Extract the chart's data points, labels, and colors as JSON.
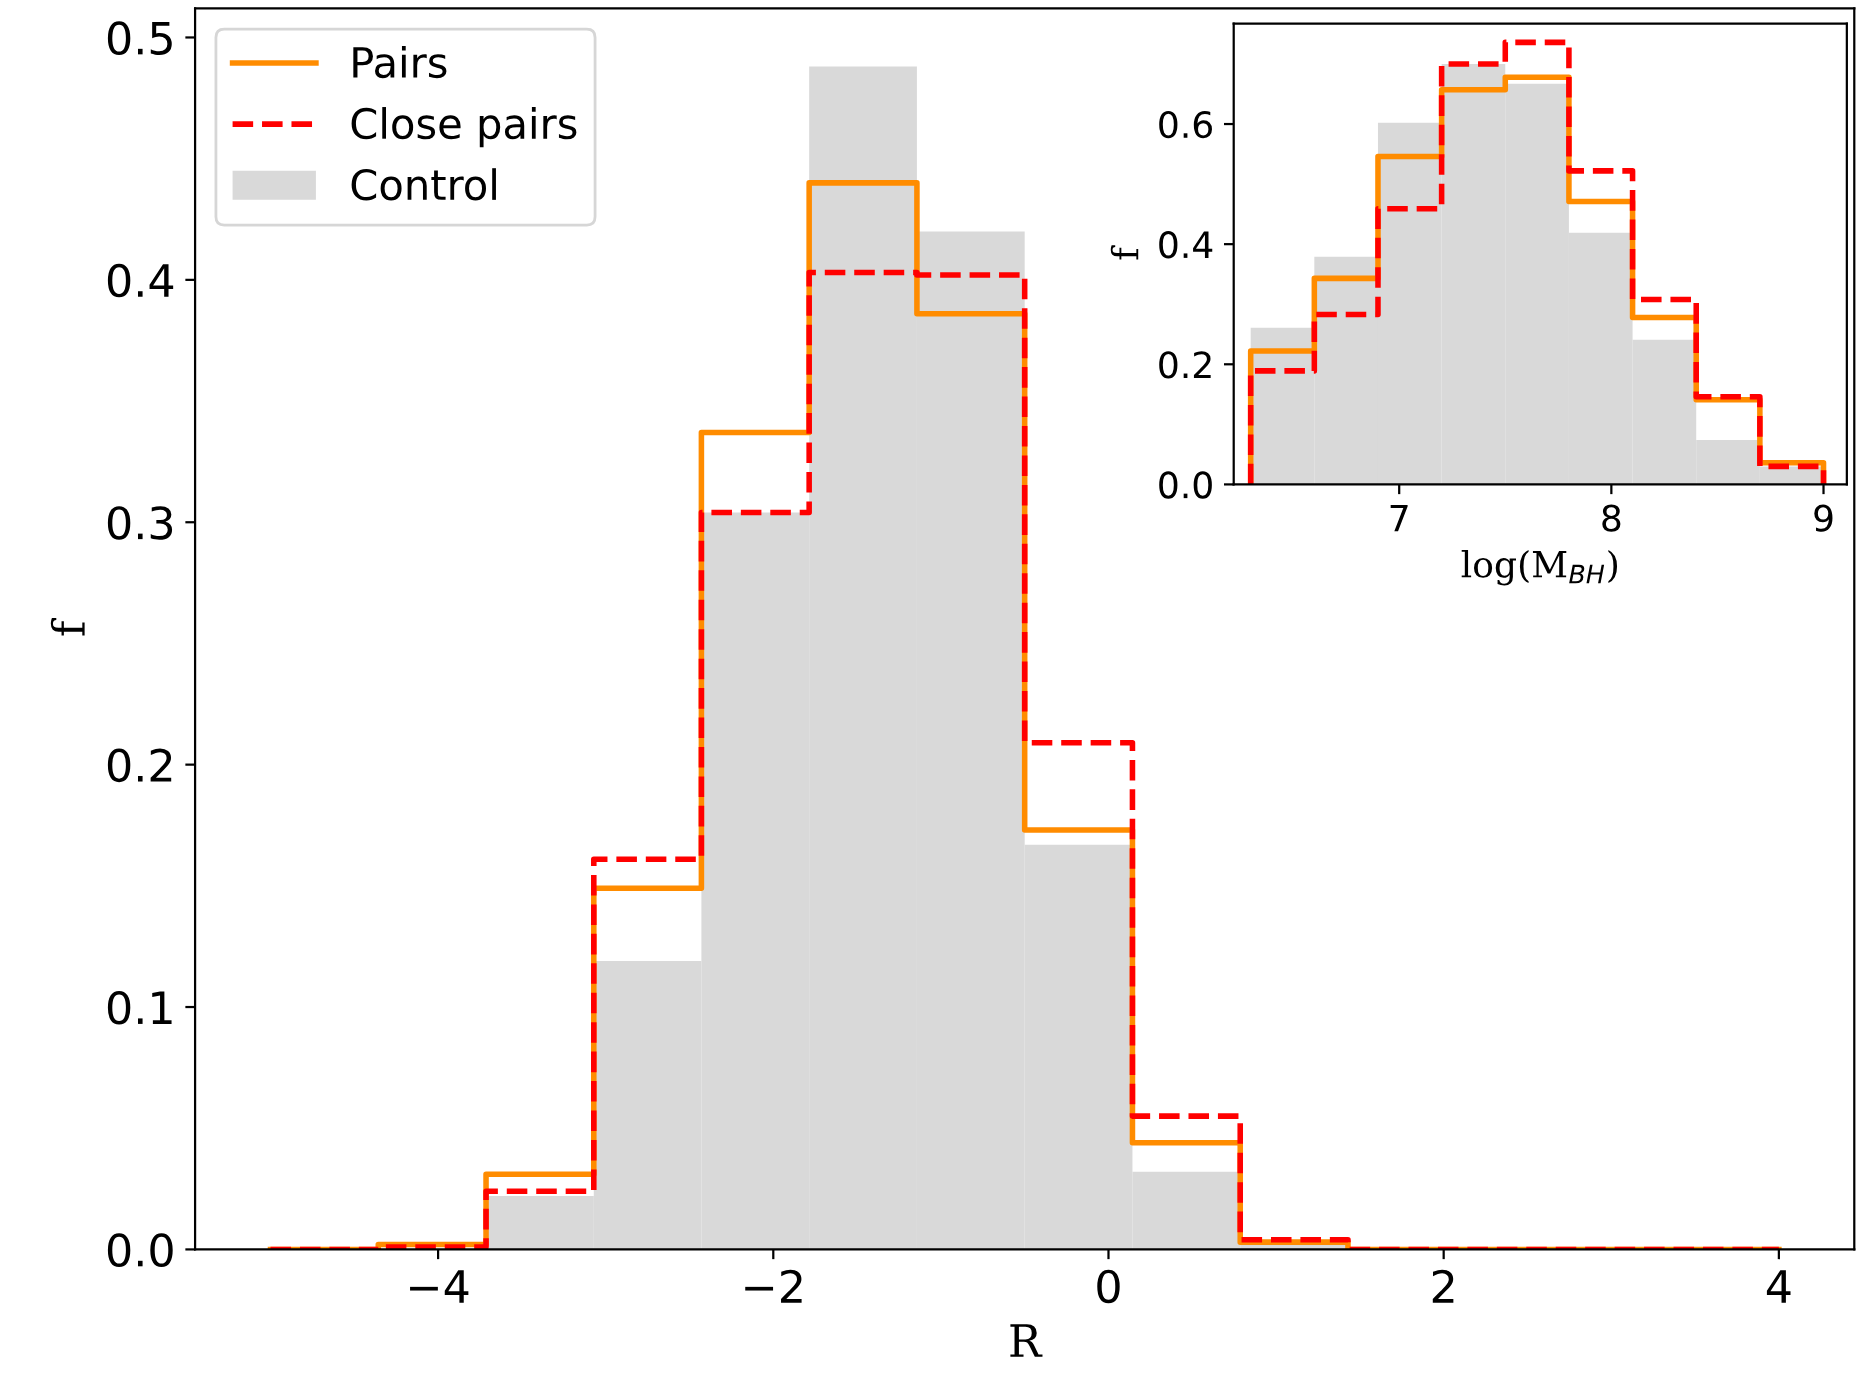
{
  "chart_data": [
    {
      "type": "histogram",
      "xlabel": "R",
      "ylabel": "f",
      "bins": [
        -5,
        -4.357,
        -3.714,
        -3.071,
        -2.429,
        -1.786,
        -1.143,
        -0.5,
        0.143,
        0.786,
        1.429,
        2.071,
        2.714,
        3.357,
        4
      ],
      "series": [
        {
          "name": "Pairs",
          "type": "step",
          "line_style": "solid",
          "color": "#ff8c00",
          "x": [
            -5,
            -4.357,
            -3.714,
            -3.071,
            -2.429,
            -1.786,
            -1.143,
            -0.5,
            0.143,
            0.786,
            1.429,
            2.071,
            2.714,
            3.357,
            4
          ],
          "values": [
            0.0,
            0.002,
            0.031,
            0.149,
            0.337,
            0.44,
            0.386,
            0.173,
            0.044,
            0.003,
            0.0,
            0.0,
            0.0,
            0.0,
            0.0
          ]
        },
        {
          "name": "Close pairs",
          "type": "step",
          "line_style": "dashed",
          "color": "#ff0000",
          "x": [
            -5,
            -4.357,
            -3.714,
            -3.071,
            -2.429,
            -1.786,
            -1.143,
            -0.5,
            0.143,
            0.786,
            1.429,
            2.071,
            2.714,
            3.357,
            4
          ],
          "values": [
            0.0,
            0.001,
            0.024,
            0.161,
            0.304,
            0.403,
            0.402,
            0.209,
            0.055,
            0.004,
            0.0,
            0.0,
            0.0,
            0.0,
            0.0
          ]
        },
        {
          "name": "Control",
          "type": "histogram",
          "color": "#d9d9d9",
          "values": [
            0.0,
            0.0,
            0.022,
            0.119,
            0.304,
            0.488,
            0.42,
            0.167,
            0.032,
            0.002,
            0.0,
            0.0,
            0.0,
            0.0
          ]
        }
      ],
      "xlim": [
        -5.45,
        4.45
      ],
      "xticks": [
        {
          "value": -4,
          "label": "−4"
        },
        {
          "value": -2,
          "label": "−2"
        },
        0,
        2,
        4
      ],
      "ylim": [
        0,
        0.512
      ],
      "yticks": [
        {
          "value": 0,
          "label": "0.0"
        },
        0.1,
        0.2,
        0.3,
        0.4,
        0.5
      ],
      "legend": "top left",
      "grid": false
    },
    {
      "type": "histogram",
      "xlabel": "log(M$_{BH}$)",
      "ylabel": "f",
      "bins": [
        6.3,
        6.6,
        6.9,
        7.2,
        7.5,
        7.8,
        8.1,
        8.4,
        8.7,
        9.0
      ],
      "series": [
        {
          "type": "histogram",
          "color": "#d9d9d9",
          "values": [
            0.261,
            0.379,
            0.602,
            0.7,
            0.667,
            0.419,
            0.241,
            0.074,
            0.03
          ]
        },
        {
          "type": "step",
          "line_style": "solid",
          "color": "#ff8c00",
          "x": [
            6.3,
            6.3,
            6.6,
            6.9,
            7.2,
            7.5,
            7.8,
            8.1,
            8.4,
            8.7,
            9.0,
            9.0
          ],
          "values": [
            0,
            0.222,
            0.343,
            0.546,
            0.657,
            0.678,
            0.471,
            0.278,
            0.141,
            0.036,
            0.036,
            0
          ]
        },
        {
          "type": "step",
          "line_style": "dashed",
          "color": "#ff0000",
          "x": [
            6.3,
            6.3,
            6.6,
            6.9,
            7.2,
            7.5,
            7.8,
            8.1,
            8.4,
            8.7,
            9.0,
            9.0
          ],
          "values": [
            0,
            0.189,
            0.283,
            0.459,
            0.7,
            0.736,
            0.522,
            0.308,
            0.146,
            0.03,
            0.03,
            0
          ]
        }
      ],
      "xlim": [
        6.22,
        9.11
      ],
      "xticks": [
        7,
        8,
        9
      ],
      "ylim": [
        0,
        0.767
      ],
      "yticks": [
        {
          "value": 0,
          "label": "0.0"
        },
        0.2,
        0.4,
        0.6
      ],
      "legend": false,
      "grid": false
    }
  ]
}
